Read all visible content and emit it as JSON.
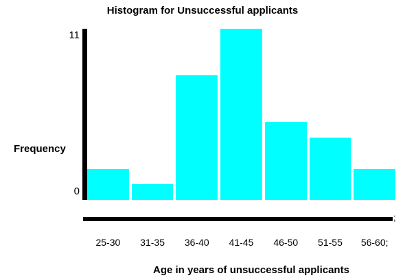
{
  "chart": {
    "title": "Histogram for Unsuccessful applicants",
    "x_axis_title": "Age in years of unsuccessful applicants",
    "y_axis_title": "Frequency",
    "y_tick_top": "11",
    "y_tick_bottom": "0",
    "axis_end_mark": ";",
    "bar_color": "#00ffff",
    "axis_color": "#000000"
  },
  "chart_data": {
    "type": "bar",
    "categories": [
      "25-30",
      "31-35",
      "36-40",
      "41-45",
      "46-50",
      "51-55",
      "56-60;"
    ],
    "values": [
      2,
      1,
      8,
      11,
      5,
      4,
      2
    ],
    "title": "Histogram for Unsuccessful applicants",
    "xlabel": "Age in years of unsuccessful applicants",
    "ylabel": "Frequency",
    "ylim": [
      0,
      11
    ],
    "grid": false,
    "legend": "none"
  }
}
